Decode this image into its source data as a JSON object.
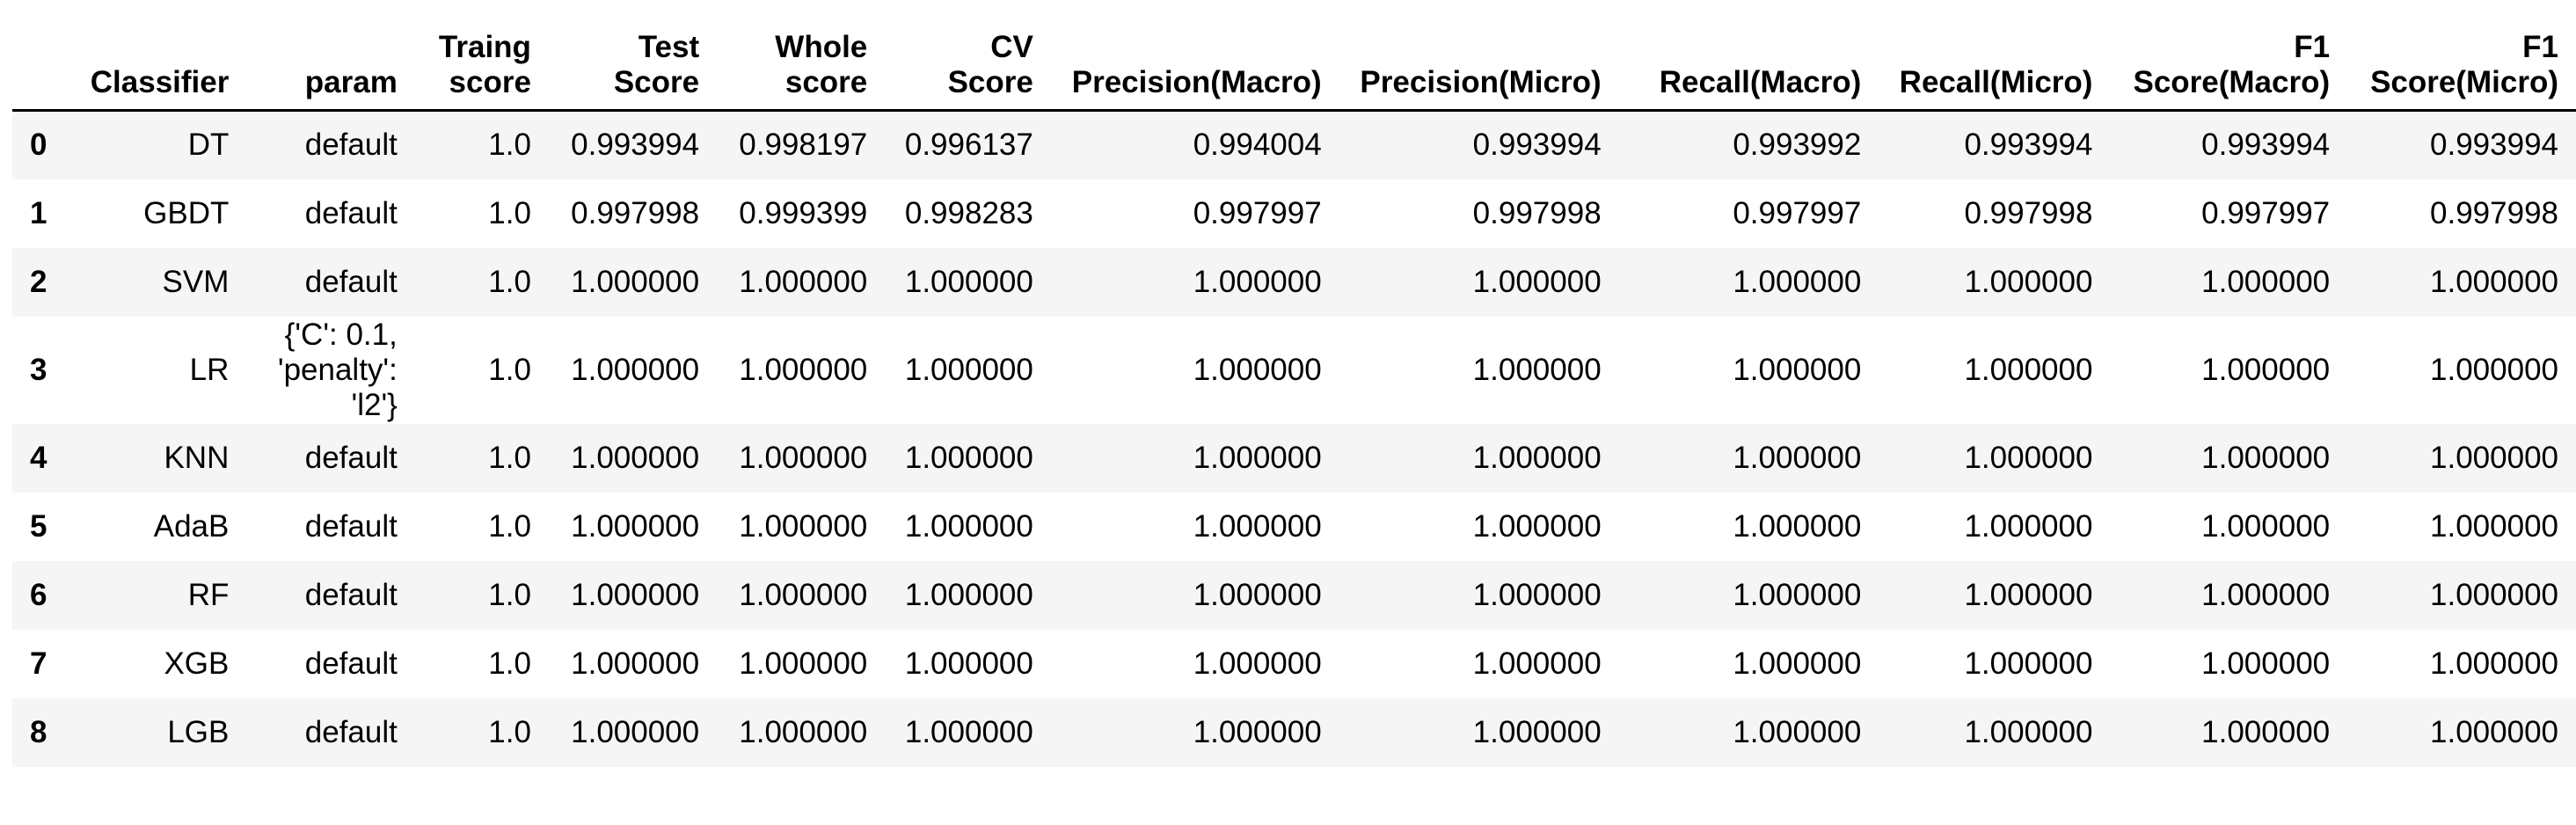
{
  "columns": [
    "",
    "Classifier",
    "param",
    "Traing score",
    "Test Score",
    "Whole score",
    "CV Score",
    "Precision(Macro)",
    "Precision(Micro)",
    "Recall(Macro)",
    "Recall(Micro)",
    "F1 Score(Macro)",
    "F1 Score(Micro)"
  ],
  "rows": [
    [
      "0",
      "DT",
      "default",
      "1.0",
      "0.993994",
      "0.998197",
      "0.996137",
      "0.994004",
      "0.993994",
      "0.993992",
      "0.993994",
      "0.993994",
      "0.993994"
    ],
    [
      "1",
      "GBDT",
      "default",
      "1.0",
      "0.997998",
      "0.999399",
      "0.998283",
      "0.997997",
      "0.997998",
      "0.997997",
      "0.997998",
      "0.997997",
      "0.997998"
    ],
    [
      "2",
      "SVM",
      "default",
      "1.0",
      "1.000000",
      "1.000000",
      "1.000000",
      "1.000000",
      "1.000000",
      "1.000000",
      "1.000000",
      "1.000000",
      "1.000000"
    ],
    [
      "3",
      "LR",
      "{'C': 0.1,\n'penalty':\n'l2'}",
      "1.0",
      "1.000000",
      "1.000000",
      "1.000000",
      "1.000000",
      "1.000000",
      "1.000000",
      "1.000000",
      "1.000000",
      "1.000000"
    ],
    [
      "4",
      "KNN",
      "default",
      "1.0",
      "1.000000",
      "1.000000",
      "1.000000",
      "1.000000",
      "1.000000",
      "1.000000",
      "1.000000",
      "1.000000",
      "1.000000"
    ],
    [
      "5",
      "AdaB",
      "default",
      "1.0",
      "1.000000",
      "1.000000",
      "1.000000",
      "1.000000",
      "1.000000",
      "1.000000",
      "1.000000",
      "1.000000",
      "1.000000"
    ],
    [
      "6",
      "RF",
      "default",
      "1.0",
      "1.000000",
      "1.000000",
      "1.000000",
      "1.000000",
      "1.000000",
      "1.000000",
      "1.000000",
      "1.000000",
      "1.000000"
    ],
    [
      "7",
      "XGB",
      "default",
      "1.0",
      "1.000000",
      "1.000000",
      "1.000000",
      "1.000000",
      "1.000000",
      "1.000000",
      "1.000000",
      "1.000000",
      "1.000000"
    ],
    [
      "8",
      "LGB",
      "default",
      "1.0",
      "1.000000",
      "1.000000",
      "1.000000",
      "1.000000",
      "1.000000",
      "1.000000",
      "1.000000",
      "1.000000",
      "1.000000"
    ]
  ]
}
